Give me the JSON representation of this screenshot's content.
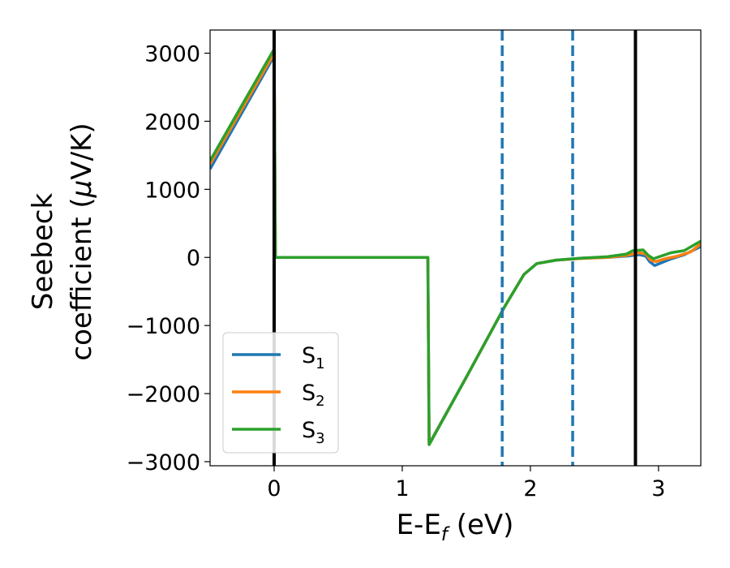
{
  "chart_data": {
    "type": "line",
    "xlabel": "E-E",
    "xlabel_sub": "f",
    "xlabel_unit": " (eV)",
    "ylabel_line1": "Seebeck",
    "ylabel_line2": "coefficient  (",
    "ylabel_mu": "μ",
    "ylabel_unit": "V/K)",
    "xlim": [
      -0.5,
      3.33
    ],
    "ylim": [
      -3060,
      3340
    ],
    "xticks": [
      {
        "value": 0,
        "label": "0"
      },
      {
        "value": 1,
        "label": "1"
      },
      {
        "value": 2,
        "label": "2"
      },
      {
        "value": 3,
        "label": "3"
      }
    ],
    "yticks": [
      {
        "value": 3000,
        "label": "3000"
      },
      {
        "value": 2000,
        "label": "2000"
      },
      {
        "value": 1000,
        "label": "1000"
      },
      {
        "value": 0,
        "label": "0"
      },
      {
        "value": -1000,
        "label": "−1000"
      },
      {
        "value": -2000,
        "label": "−2000"
      },
      {
        "value": -3000,
        "label": "−3000"
      }
    ],
    "grid": false,
    "legend_position": "lower-left",
    "vertical_lines": [
      {
        "x": 0,
        "style": "solid",
        "color": "#000000"
      },
      {
        "x": 1.78,
        "style": "dashed",
        "color": "#1f77b4"
      },
      {
        "x": 2.33,
        "style": "dashed",
        "color": "#1f77b4"
      },
      {
        "x": 2.82,
        "style": "solid",
        "color": "#000000"
      }
    ],
    "series": [
      {
        "name": "S",
        "sub": "1",
        "color": "#1f77b4",
        "points": [
          [
            -0.5,
            1300
          ],
          [
            0,
            2960
          ],
          [
            0.01,
            0
          ],
          [
            1.2,
            0
          ],
          [
            1.21,
            -2740
          ],
          [
            1.5,
            -1760
          ],
          [
            1.8,
            -720
          ],
          [
            1.95,
            -250
          ],
          [
            2.05,
            -90
          ],
          [
            2.2,
            -40
          ],
          [
            2.4,
            -10
          ],
          [
            2.6,
            0
          ],
          [
            2.75,
            20
          ],
          [
            2.85,
            40
          ],
          [
            2.9,
            20
          ],
          [
            2.93,
            -60
          ],
          [
            2.97,
            -120
          ],
          [
            3.02,
            -80
          ],
          [
            3.1,
            -20
          ],
          [
            3.2,
            40
          ],
          [
            3.33,
            160
          ]
        ]
      },
      {
        "name": "S",
        "sub": "2",
        "color": "#ff7f0e",
        "points": [
          [
            -0.5,
            1370
          ],
          [
            0,
            3000
          ],
          [
            0.01,
            0
          ],
          [
            1.2,
            0
          ],
          [
            1.21,
            -2745
          ],
          [
            1.5,
            -1760
          ],
          [
            1.8,
            -720
          ],
          [
            1.95,
            -250
          ],
          [
            2.05,
            -90
          ],
          [
            2.2,
            -40
          ],
          [
            2.4,
            -15
          ],
          [
            2.6,
            0
          ],
          [
            2.75,
            30
          ],
          [
            2.85,
            70
          ],
          [
            2.9,
            50
          ],
          [
            2.94,
            -40
          ],
          [
            2.98,
            -60
          ],
          [
            3.05,
            -20
          ],
          [
            3.15,
            20
          ],
          [
            3.25,
            80
          ],
          [
            3.33,
            200
          ]
        ]
      },
      {
        "name": "S",
        "sub": "3",
        "color": "#2ca02c",
        "points": [
          [
            -0.5,
            1420
          ],
          [
            0,
            3060
          ],
          [
            0.01,
            0
          ],
          [
            1.2,
            0
          ],
          [
            1.21,
            -2750
          ],
          [
            1.5,
            -1760
          ],
          [
            1.8,
            -720
          ],
          [
            1.95,
            -250
          ],
          [
            2.05,
            -90
          ],
          [
            2.2,
            -40
          ],
          [
            2.4,
            -10
          ],
          [
            2.6,
            10
          ],
          [
            2.75,
            50
          ],
          [
            2.8,
            100
          ],
          [
            2.88,
            110
          ],
          [
            2.92,
            30
          ],
          [
            2.96,
            -20
          ],
          [
            3.02,
            20
          ],
          [
            3.1,
            70
          ],
          [
            3.2,
            100
          ],
          [
            3.33,
            240
          ]
        ]
      }
    ]
  }
}
